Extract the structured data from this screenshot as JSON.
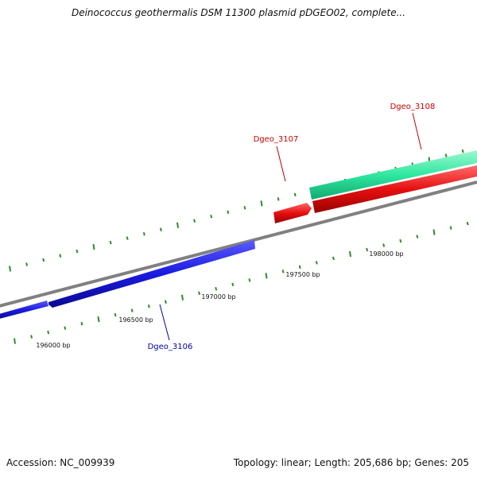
{
  "title": "Deinococcus geothermalis DSM 11300 plasmid pDGEO02, complete...",
  "footer": {
    "accession": "Accession: NC_009939",
    "summary": "Topology: linear; Length: 205,686 bp; Genes: 205"
  },
  "colors": {
    "backbone": "#808080",
    "tick_marks": "#2e8b2e",
    "forward_gene_teal": "#2ee8a0",
    "forward_gene_red": "#e61010",
    "reverse_gene_blue": "#1a1ae0",
    "label_red": "#cc0000",
    "label_blue": "#0000aa"
  },
  "scale_labels": [
    "196000 bp",
    "196500 bp",
    "197000 bp",
    "197500 bp",
    "198000 bp"
  ],
  "genes": [
    {
      "name": "Dgeo_3106",
      "strand": "reverse",
      "color": "blue"
    },
    {
      "name": "Dgeo_3107",
      "strand": "forward",
      "color": "red"
    },
    {
      "name": "Dgeo_3108",
      "strand": "forward",
      "color": "teal"
    }
  ]
}
